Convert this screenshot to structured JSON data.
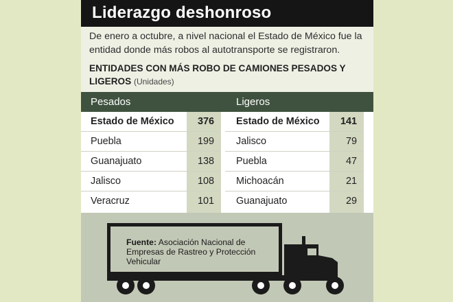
{
  "title": "Liderazgo deshonroso",
  "subtitle": "De enero a octubre, a nivel nacional el Estado de México fue la entidad donde más robos al autotransporte se registraron.",
  "table_heading": "ENTIDADES CON MÁS ROBO DE CAMIONES PESADOS Y LIGEROS",
  "table_units": "(Unidades)",
  "pesados": {
    "header": "Pesados",
    "rows": [
      {
        "name": "Estado de México",
        "value": "376"
      },
      {
        "name": "Puebla",
        "value": "199"
      },
      {
        "name": "Guanajuato",
        "value": "138"
      },
      {
        "name": "Jalisco",
        "value": "108"
      },
      {
        "name": "Veracruz",
        "value": "101"
      }
    ]
  },
  "ligeros": {
    "header": "Ligeros",
    "rows": [
      {
        "name": "Estado de México",
        "value": "141"
      },
      {
        "name": "Jalisco",
        "value": "79"
      },
      {
        "name": "Puebla",
        "value": "47"
      },
      {
        "name": "Michoacán",
        "value": "21"
      },
      {
        "name": "Guanajuato",
        "value": "29"
      }
    ]
  },
  "source": {
    "label": "Fuente:",
    "text": "Asociación Nacional de Empresas de Rastreo y Protección Vehicular"
  },
  "colors": {
    "background": "#e3e8c4",
    "title_bar": "#151515",
    "column_header": "#3f523f",
    "value_column": "#d3d8c1",
    "truck_area": "#c2c8b6",
    "truck": "#1b1b1b"
  },
  "icons": [
    "truck-icon"
  ]
}
